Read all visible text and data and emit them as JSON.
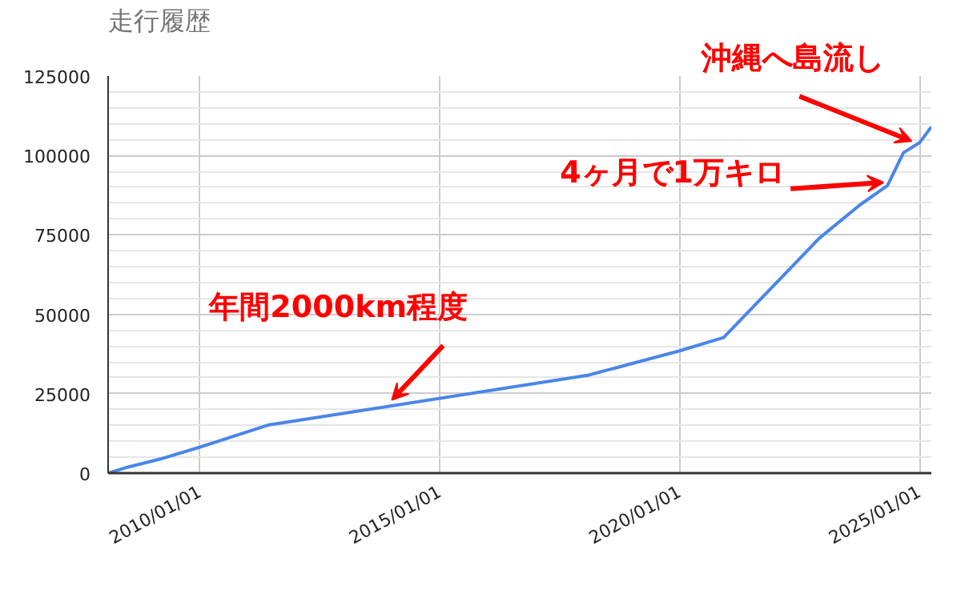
{
  "chart_data": {
    "type": "line",
    "title": "走行履歴",
    "x": [
      "2008-02",
      "2008-07",
      "2009-03",
      "2010-01",
      "2011-06",
      "2018-02",
      "2020-01",
      "2020-12",
      "2022-12",
      "2023-10",
      "2024-05",
      "2024-09",
      "2025-01",
      "2025-04"
    ],
    "series": [
      {
        "color": "#4a86e8",
        "values": [
          0,
          1900,
          4400,
          8200,
          15100,
          30800,
          38500,
          42700,
          74000,
          84300,
          90500,
          100900,
          104000,
          109000
        ]
      }
    ],
    "xlim": [
      "2008-02",
      "2025-04"
    ],
    "xticks": [
      {
        "value": "2010-01-01",
        "label": "2010/01/01"
      },
      {
        "value": "2015-01-01",
        "label": "2015/01/01"
      },
      {
        "value": "2020-01-01",
        "label": "2020/01/01"
      },
      {
        "value": "2025-01-01",
        "label": "2025/01/01"
      }
    ],
    "ylim": [
      0,
      125000
    ],
    "yticks": [
      0,
      25000,
      50000,
      75000,
      100000,
      125000
    ],
    "grid": true,
    "marker": "none",
    "line_style": "solid",
    "annotations": [
      {
        "text": "年間2000km程度",
        "x": "2014-01",
        "y": 21000
      },
      {
        "text": "4ヶ月で1万キロ",
        "x": "2024-04",
        "y": 89500
      },
      {
        "text": "沖縄へ島流し",
        "x": "2024-11",
        "y": 102500
      }
    ]
  }
}
